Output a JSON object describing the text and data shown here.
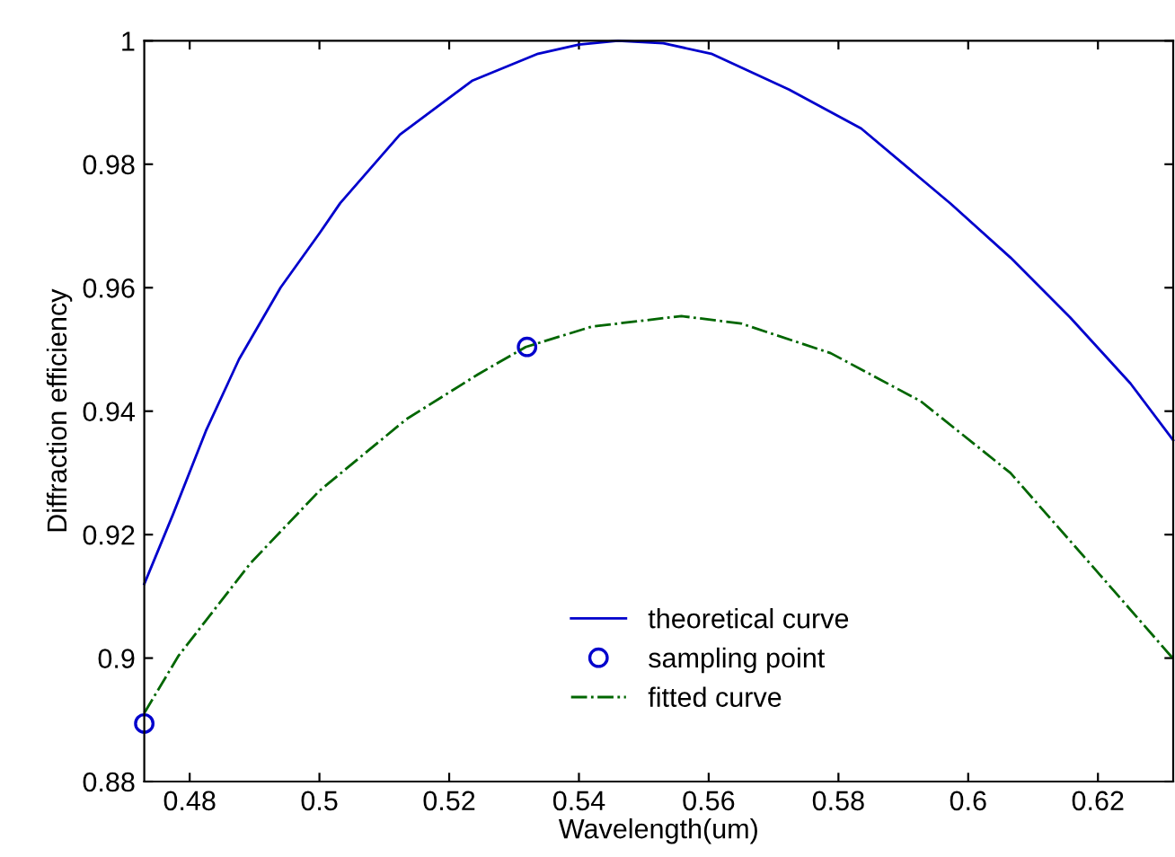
{
  "chart_data": {
    "type": "line",
    "xlabel": "Wavelength(um)",
    "ylabel": "Diffraction efficiency",
    "xlim": [
      0.473,
      0.6316
    ],
    "ylim": [
      0.88,
      1
    ],
    "xticks": [
      0.48,
      0.5,
      0.52,
      0.54,
      0.56,
      0.58,
      0.6,
      0.62
    ],
    "yticks": [
      0.88,
      0.9,
      0.92,
      0.94,
      0.96,
      0.98,
      1
    ],
    "grid": false,
    "legend": "bottom",
    "series": [
      {
        "name": "theoretical curve",
        "color": "#0000cc",
        "line_style": "solid",
        "marker": "none",
        "x": [
          0.473,
          0.4774,
          0.4825,
          0.4876,
          0.494,
          0.5,
          0.5032,
          0.5124,
          0.5235,
          0.5337,
          0.54,
          0.546,
          0.553,
          0.5604,
          0.5724,
          0.5835,
          0.5973,
          0.6065,
          0.6157,
          0.625,
          0.6316
        ],
        "values": [
          0.912,
          0.9232,
          0.9368,
          0.9484,
          0.96,
          0.9688,
          0.9737,
          0.9848,
          0.9935,
          0.9979,
          0.9994,
          1.0,
          0.9996,
          0.9979,
          0.9921,
          0.9858,
          0.9736,
          0.9649,
          0.9552,
          0.9445,
          0.9353
        ]
      },
      {
        "name": "sampling point",
        "type": "scatter",
        "color": "#0000cc",
        "marker": "circle",
        "x": [
          0.473,
          0.532
        ],
        "values": [
          0.8894,
          0.9504
        ]
      },
      {
        "name": "fitted curve",
        "color": "#006600",
        "line_style": "dashdot",
        "marker": "none",
        "x": [
          0.473,
          0.4783,
          0.4894,
          0.5,
          0.5134,
          0.5245,
          0.5318,
          0.542,
          0.5558,
          0.565,
          0.5788,
          0.5927,
          0.6065,
          0.6203,
          0.6316
        ],
        "values": [
          0.8911,
          0.9004,
          0.9154,
          0.9271,
          0.9387,
          0.946,
          0.9504,
          0.9537,
          0.9554,
          0.9542,
          0.9494,
          0.9416,
          0.93,
          0.9135,
          0.8999
        ]
      }
    ]
  }
}
